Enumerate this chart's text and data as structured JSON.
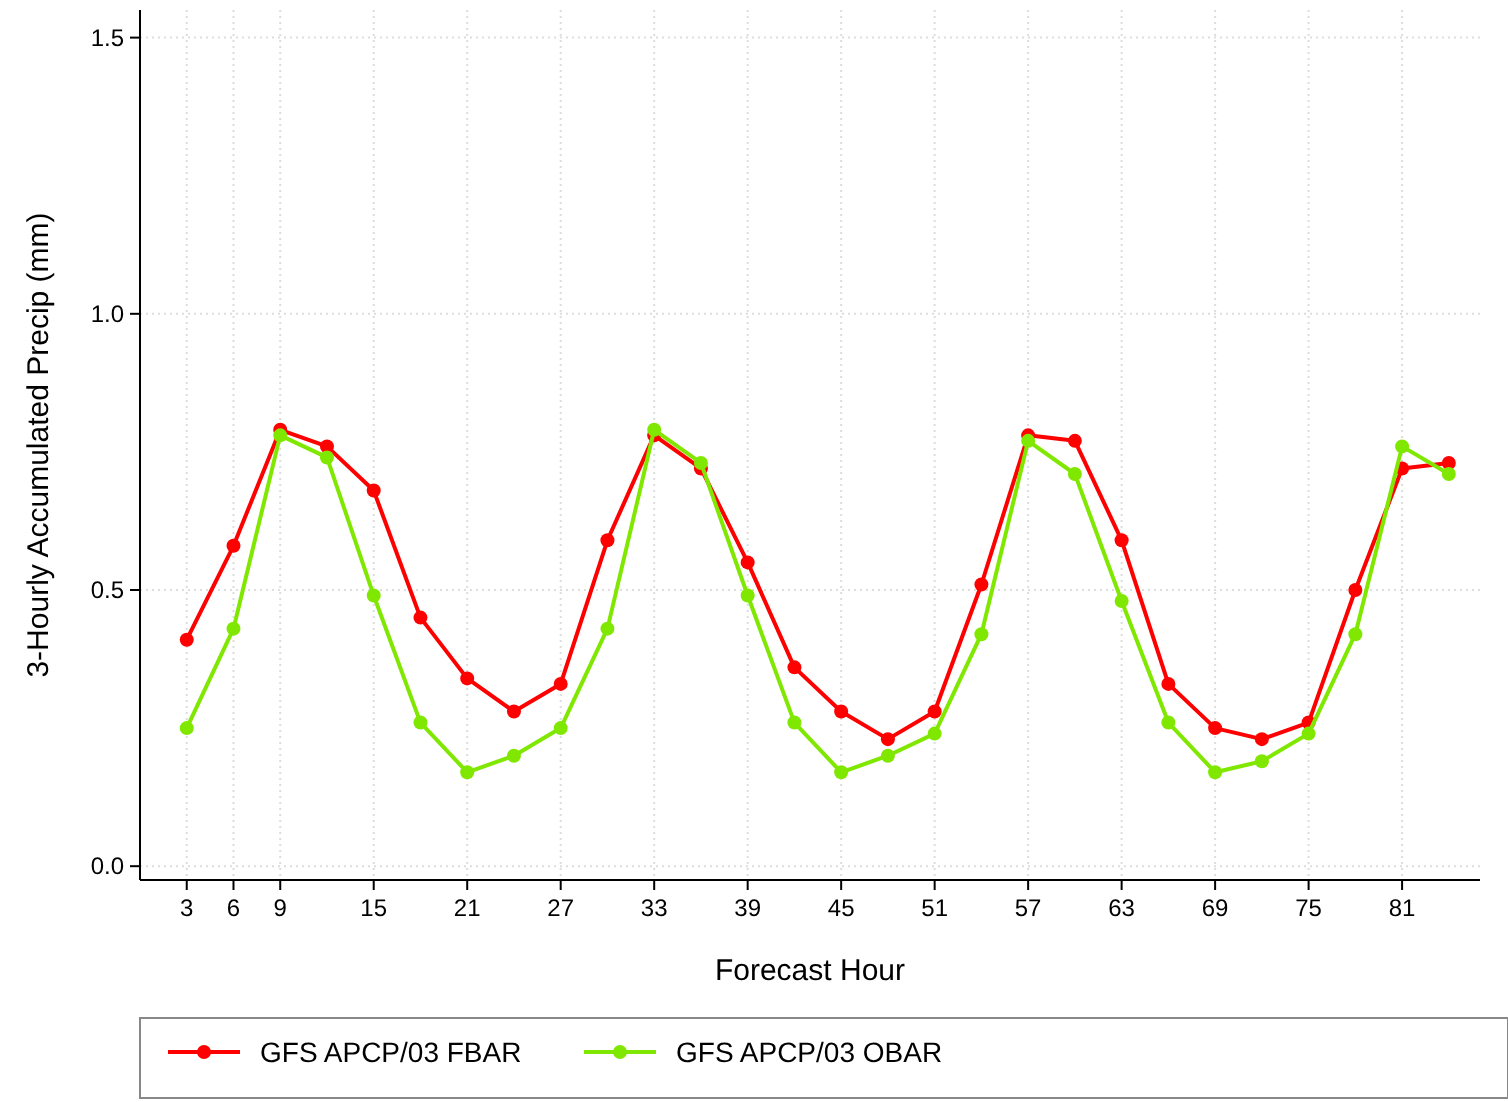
{
  "chart_data": {
    "type": "line",
    "xlabel": "Forecast Hour",
    "ylabel": "3-Hourly Accumulated Precip (mm)",
    "x": [
      3,
      6,
      9,
      12,
      15,
      18,
      21,
      24,
      27,
      30,
      33,
      36,
      39,
      42,
      45,
      48,
      51,
      54,
      57,
      60,
      63,
      66,
      69,
      72,
      75,
      78,
      81,
      84
    ],
    "series": [
      {
        "name": "GFS APCP/03 FBAR",
        "color": "#ff0000",
        "values": [
          0.41,
          0.58,
          0.79,
          0.76,
          0.68,
          0.45,
          0.34,
          0.28,
          0.33,
          0.59,
          0.78,
          0.72,
          0.55,
          0.36,
          0.28,
          0.23,
          0.28,
          0.51,
          0.78,
          0.77,
          0.59,
          0.33,
          0.25,
          0.23,
          0.26,
          0.5,
          0.72,
          0.73
        ]
      },
      {
        "name": "GFS APCP/03 OBAR",
        "color": "#80e800",
        "values": [
          0.25,
          0.43,
          0.78,
          0.74,
          0.49,
          0.26,
          0.17,
          0.2,
          0.25,
          0.43,
          0.79,
          0.73,
          0.49,
          0.26,
          0.17,
          0.2,
          0.24,
          0.42,
          0.77,
          0.71,
          0.48,
          0.26,
          0.17,
          0.19,
          0.24,
          0.42,
          0.76,
          0.71
        ]
      }
    ],
    "xlim": [
      0,
      86
    ],
    "xticks": [
      3,
      6,
      9,
      15,
      21,
      27,
      33,
      39,
      45,
      51,
      57,
      63,
      69,
      75,
      81
    ],
    "ylim": [
      -0.025,
      1.55
    ],
    "yticks": [
      {
        "value": 0,
        "label": "0.0"
      },
      {
        "value": 0.5,
        "label": "0.5"
      },
      {
        "value": 1,
        "label": "1.0"
      },
      {
        "value": 1.5,
        "label": "1.5"
      }
    ],
    "grid": true,
    "legend": "bottom",
    "marker": "circle",
    "line_style": "solid"
  }
}
